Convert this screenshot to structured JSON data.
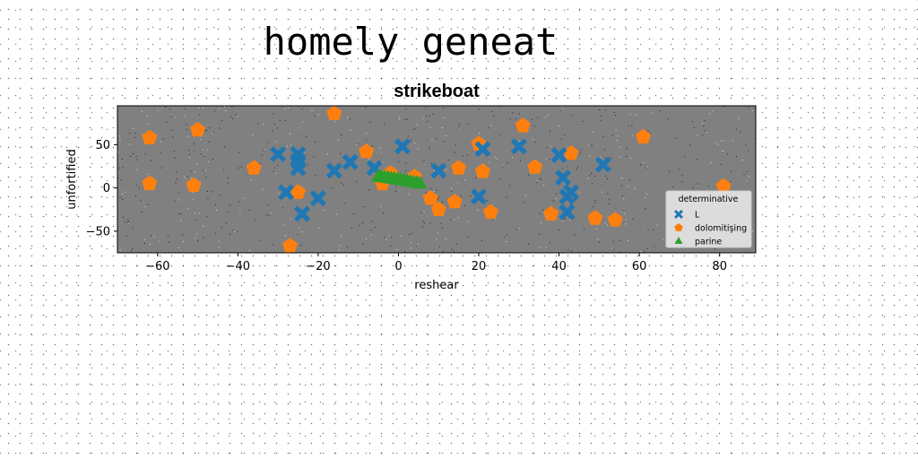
{
  "figure": {
    "suptitle": "homely geneat"
  },
  "chart_data": {
    "type": "scatter",
    "title": "strikeboat",
    "xlabel": "reshear",
    "ylabel": "unfortified",
    "xlim": [
      -70,
      89
    ],
    "ylim": [
      -75,
      95
    ],
    "xticks": [
      -60,
      -40,
      -20,
      0,
      20,
      40,
      60,
      80
    ],
    "yticks": [
      -50,
      0,
      50
    ],
    "background": "#808080",
    "grid": false,
    "legend": {
      "title": "determinative",
      "placement": "lower-right"
    },
    "series": [
      {
        "name": "L",
        "marker": "x",
        "color": "#1f77b4",
        "points": [
          [
            -30,
            39
          ],
          [
            -25,
            39
          ],
          [
            -25,
            31
          ],
          [
            -25,
            23
          ],
          [
            -28,
            -5
          ],
          [
            -24,
            -30
          ],
          [
            -20,
            -12
          ],
          [
            -16,
            20
          ],
          [
            -12,
            30
          ],
          [
            -6,
            23
          ],
          [
            1,
            48
          ],
          [
            10,
            20
          ],
          [
            20,
            -10
          ],
          [
            21,
            45
          ],
          [
            30,
            48
          ],
          [
            40,
            38
          ],
          [
            41,
            12
          ],
          [
            42,
            -28
          ],
          [
            42,
            -10
          ],
          [
            43,
            -5
          ],
          [
            51,
            27
          ]
        ]
      },
      {
        "name": "dolomitişing",
        "marker": "pentagon",
        "color": "#ff7f0e",
        "points": [
          [
            -62,
            58
          ],
          [
            -62,
            5
          ],
          [
            -50,
            67
          ],
          [
            -51,
            3
          ],
          [
            -36,
            23
          ],
          [
            -27,
            -67
          ],
          [
            -25,
            -5
          ],
          [
            -16,
            86
          ],
          [
            -8,
            42
          ],
          [
            -4,
            5
          ],
          [
            -2,
            17
          ],
          [
            4,
            13
          ],
          [
            8,
            -12
          ],
          [
            10,
            -25
          ],
          [
            14,
            -16
          ],
          [
            15,
            23
          ],
          [
            20,
            51
          ],
          [
            21,
            19
          ],
          [
            23,
            -28
          ],
          [
            31,
            72
          ],
          [
            34,
            24
          ],
          [
            38,
            -30
          ],
          [
            43,
            40
          ],
          [
            49,
            -35
          ],
          [
            54,
            -37
          ],
          [
            61,
            59
          ],
          [
            81,
            2
          ]
        ]
      },
      {
        "name": "parine",
        "marker": "triangle",
        "color": "#2ca02c",
        "points": [
          [
            -5.0,
            13.0
          ],
          [
            -4.2,
            12.5
          ],
          [
            -3.4,
            12.0
          ],
          [
            -2.6,
            11.4
          ],
          [
            -1.8,
            10.8
          ],
          [
            -1.0,
            10.2
          ],
          [
            -0.2,
            9.6
          ],
          [
            0.6,
            9.0
          ],
          [
            1.4,
            8.3
          ],
          [
            2.2,
            7.6
          ],
          [
            3.0,
            6.9
          ],
          [
            3.8,
            6.2
          ],
          [
            4.6,
            5.5
          ],
          [
            5.4,
            4.8
          ]
        ]
      }
    ]
  }
}
